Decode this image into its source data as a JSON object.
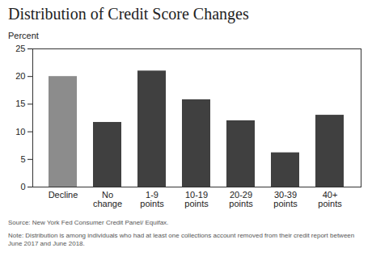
{
  "chart_data": {
    "type": "bar",
    "title": "Distribution of Credit Score Changes",
    "y_label": "Percent",
    "categories": [
      "Decline",
      "No change",
      "1-9 points",
      "10-19 points",
      "20-29 points",
      "30-39 points",
      "40+ points"
    ],
    "values": [
      20,
      11.7,
      21,
      15.8,
      12,
      6.2,
      13
    ],
    "colors": [
      "#8c8c8c",
      "#404040",
      "#404040",
      "#404040",
      "#404040",
      "#404040",
      "#404040"
    ],
    "ylim": [
      0,
      25
    ],
    "yticks": [
      0,
      5,
      10,
      15,
      20,
      25
    ],
    "grid": false,
    "source": "Source: New York Fed Consumer Credit Panel/ Equifax.",
    "note": "Note: Distribution is among individuals who had at least one collections account removed from their credit report between June 2017 and June 2018."
  }
}
